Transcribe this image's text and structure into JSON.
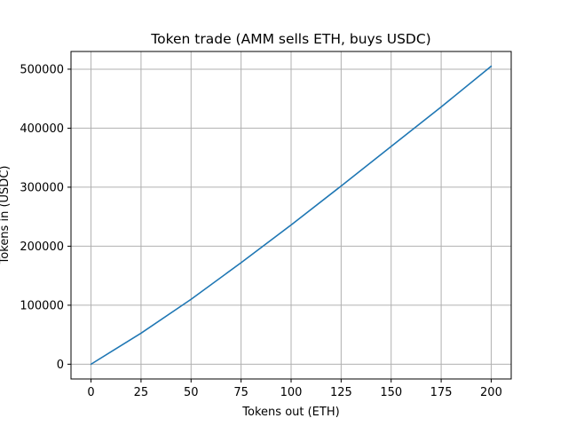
{
  "chart_data": {
    "type": "line",
    "title": "Token trade (AMM sells ETH, buys USDC)",
    "xlabel": "Tokens out (ETH)",
    "ylabel": "Tokens in (USDC)",
    "xlim": [
      -10,
      210
    ],
    "ylim": [
      -25000,
      530000
    ],
    "xticks": [
      0,
      25,
      50,
      75,
      100,
      125,
      150,
      175,
      200
    ],
    "yticks": [
      0,
      100000,
      200000,
      300000,
      400000,
      500000
    ],
    "xtick_labels": [
      "0",
      "25",
      "50",
      "75",
      "100",
      "125",
      "150",
      "175",
      "200"
    ],
    "ytick_labels": [
      "0",
      "100000",
      "200000",
      "300000",
      "400000",
      "500000"
    ],
    "grid": true,
    "line_color": "#1f77b4",
    "grid_color": "#b0b0b0",
    "series": [
      {
        "x": [
          0,
          25,
          50,
          75,
          100,
          125,
          150,
          175,
          200
        ],
        "y": [
          0,
          52600,
          110000,
          172000,
          236000,
          302000,
          369000,
          436000,
          505000
        ]
      }
    ]
  }
}
